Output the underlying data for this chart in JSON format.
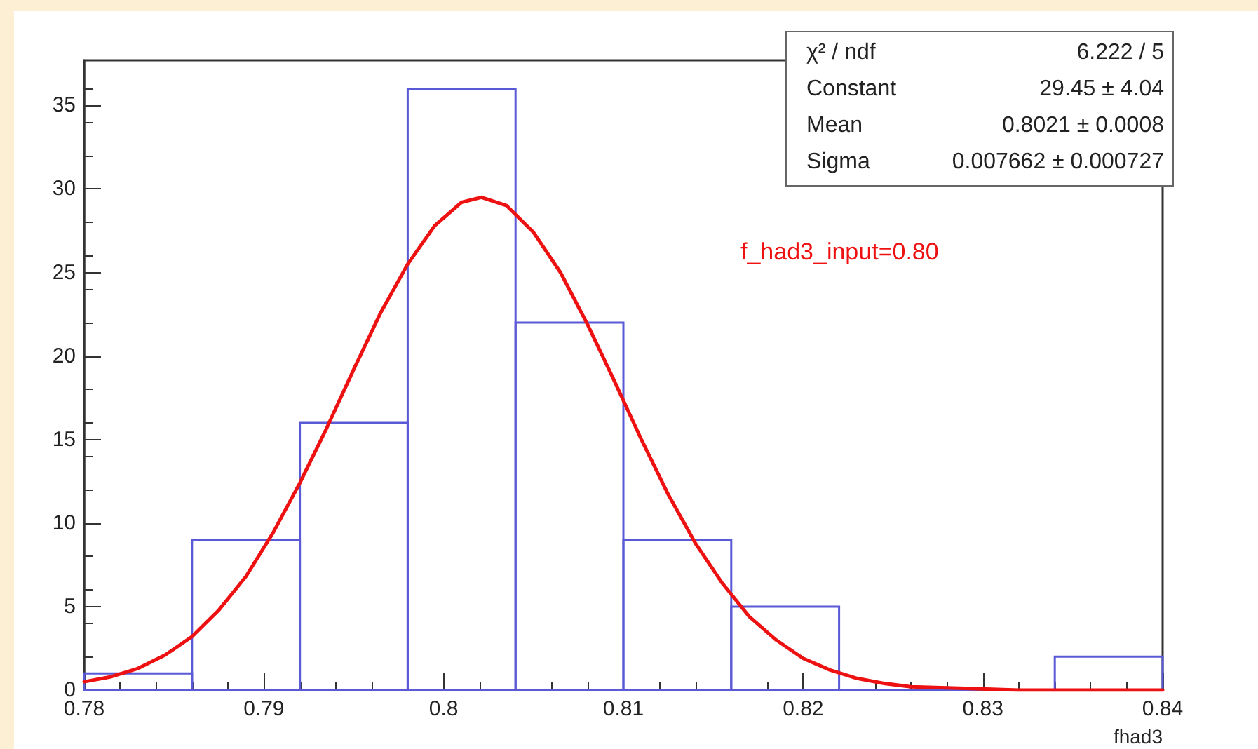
{
  "chart_data": {
    "type": "histogram",
    "xlabel": "fhad3",
    "xlim": [
      0.78,
      0.84
    ],
    "xticks": [
      0.78,
      0.79,
      0.8,
      0.81,
      0.82,
      0.83,
      0.84
    ],
    "ylim": [
      0,
      37.7
    ],
    "yticks": [
      0,
      5,
      10,
      15,
      20,
      25,
      30,
      35
    ],
    "grid": false,
    "series": [
      {
        "color": "#5a5ad6",
        "bins": [
          0.78,
          0.786,
          0.792,
          0.798,
          0.804,
          0.81,
          0.816,
          0.822,
          0.828,
          0.834,
          0.84
        ],
        "values": [
          1,
          9,
          16,
          36,
          22,
          9,
          5,
          0,
          0,
          2
        ]
      },
      {
        "type": "line",
        "color": "#ee1111",
        "marker": "none",
        "x": [
          0.78,
          0.7815,
          0.783,
          0.7845,
          0.786,
          0.7875,
          0.789,
          0.7905,
          0.792,
          0.7935,
          0.795,
          0.7965,
          0.798,
          0.7995,
          0.801,
          0.8021,
          0.8035,
          0.805,
          0.8065,
          0.808,
          0.8095,
          0.811,
          0.8125,
          0.814,
          0.8155,
          0.817,
          0.8185,
          0.82,
          0.8215,
          0.823,
          0.8245,
          0.826,
          0.829,
          0.832,
          0.836,
          0.84
        ],
        "values": [
          0.5,
          0.8,
          1.3,
          2.1,
          3.2,
          4.8,
          6.8,
          9.4,
          12.4,
          15.7,
          19.2,
          22.6,
          25.5,
          27.8,
          29.2,
          29.5,
          29.0,
          27.4,
          25.0,
          21.9,
          18.5,
          15.0,
          11.7,
          8.8,
          6.4,
          4.4,
          3.0,
          1.9,
          1.2,
          0.7,
          0.4,
          0.2,
          0.1,
          0,
          0,
          0
        ]
      }
    ],
    "annotations": [
      "χ² / ndf",
      "6.222 / 5",
      "Constant",
      "29.45 ± 4.04",
      "Mean",
      "0.8021 ± 0.0008",
      "Sigma",
      "0.007662 ± 0.000727",
      "f_had3_input=0.80"
    ]
  }
}
